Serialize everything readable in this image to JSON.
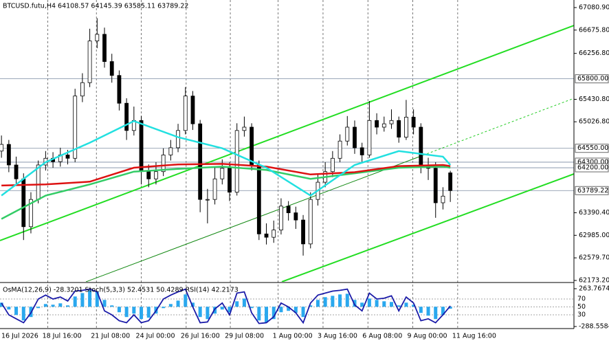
{
  "chart_data": {
    "type": "candlestick",
    "title": "BTCUSD.futu,H4 64108.57 64145.39 63585.11 63789.22",
    "open": [
      64500,
      64620,
      64250,
      64000,
      63140,
      63630,
      64250,
      64370,
      64310,
      64430,
      64370,
      65490,
      65730,
      66480,
      66600,
      66110,
      65860,
      65360,
      64870,
      65050,
      64130,
      64000,
      64130,
      64430,
      64560,
      64870,
      65490,
      64990,
      63630,
      63630,
      64000,
      64190,
      63760,
      64870,
      64930,
      64250,
      63010,
      62950,
      63080,
      63510,
      63390,
      63260,
      62830,
      63630,
      63940,
      64130,
      64370,
      64680,
      64930,
      64560,
      64430,
      65050,
      64930,
      64990,
      65050,
      64750,
      65110,
      64930,
      64250,
      64190,
      63570,
      64108.57
    ],
    "high": [
      64780,
      64700,
      64400,
      64100,
      63760,
      64330,
      64500,
      64480,
      64560,
      64520,
      65620,
      65900,
      66700,
      66890,
      66720,
      66250,
      65950,
      65450,
      65300,
      65130,
      64260,
      64300,
      64550,
      64700,
      64990,
      65650,
      65580,
      65060,
      63820,
      64200,
      64350,
      64300,
      65000,
      65120,
      65000,
      64330,
      63200,
      63250,
      63650,
      63600,
      63500,
      63350,
      63760,
      64080,
      64300,
      64500,
      64800,
      65130,
      65050,
      64650,
      65400,
      65180,
      65120,
      65250,
      65120,
      65420,
      65250,
      65000,
      64380,
      64300,
      63850,
      64145.39
    ],
    "low": [
      64380,
      64120,
      63880,
      62900,
      63020,
      63560,
      64150,
      64200,
      64220,
      64260,
      64300,
      65380,
      65650,
      66350,
      66000,
      65730,
      65230,
      64700,
      64780,
      63900,
      63850,
      63900,
      64050,
      64330,
      64480,
      64800,
      64880,
      63400,
      63200,
      63540,
      63900,
      63600,
      63700,
      64760,
      64150,
      62900,
      62820,
      62850,
      63000,
      63250,
      63100,
      62620,
      62750,
      63520,
      63850,
      64030,
      64300,
      64600,
      64450,
      64300,
      64380,
      64800,
      64850,
      64900,
      64650,
      64700,
      64800,
      64100,
      63980,
      63300,
      63450,
      63585.11
    ],
    "close": [
      64620,
      64250,
      64000,
      63140,
      63630,
      64250,
      64370,
      64310,
      64430,
      64370,
      65490,
      65730,
      66480,
      66600,
      66110,
      65860,
      65360,
      64870,
      65050,
      64130,
      64000,
      64130,
      64430,
      64560,
      64870,
      65490,
      64990,
      63630,
      63630,
      64000,
      64190,
      63760,
      64870,
      64930,
      64250,
      63010,
      62950,
      63080,
      63510,
      63390,
      63260,
      62830,
      63630,
      63940,
      64130,
      64370,
      64680,
      64930,
      64560,
      64430,
      65050,
      64930,
      64990,
      65050,
      64750,
      65110,
      64930,
      64250,
      64190,
      63570,
      63690,
      63789.22
    ],
    "xlim": [
      -0.2,
      77.8
    ],
    "xticks": [
      {
        "value": 0,
        "label": "16 Jul 2026"
      },
      {
        "value": 6.3,
        "label": "18 Jul 16:00"
      },
      {
        "value": 12.9,
        "label": "21 Jul 08:00"
      },
      {
        "value": 19,
        "label": "24 Jul 00:00"
      },
      {
        "value": 25.1,
        "label": "26 Jul 16:00"
      },
      {
        "value": 31.1,
        "label": "29 Jul 08:00"
      },
      {
        "value": 37.6,
        "label": "1 Aug 00:00"
      },
      {
        "value": 43.7,
        "label": "3 Aug 16:00"
      },
      {
        "value": 49.8,
        "label": "6 Aug 08:00"
      },
      {
        "value": 55.9,
        "label": "9 Aug 00:00"
      },
      {
        "value": 62,
        "label": "11 Aug 16:00"
      }
    ],
    "ylim": [
      62173.2,
      67080.9
    ],
    "yticks": [
      {
        "value": 67080.9,
        "label": "67080.90"
      },
      {
        "value": 66675.8,
        "label": "66675.80"
      },
      {
        "value": 66256.8,
        "label": "66256.80"
      },
      {
        "value": 65430.8,
        "label": "65430.80"
      },
      {
        "value": 65026.8,
        "label": "65026.80"
      },
      {
        "value": 63390.4,
        "label": "63390.40"
      },
      {
        "value": 62985,
        "label": "62985.00"
      },
      {
        "value": 62579.7,
        "label": "62579.70"
      },
      {
        "value": 62173.2,
        "label": "62173.20"
      }
    ],
    "levels": [
      {
        "value": 65800,
        "label": "65800.00"
      },
      {
        "value": 64550,
        "label": "64550.00"
      },
      {
        "value": 64300,
        "label": "64300.00"
      },
      {
        "value": 64200,
        "label": "64200.00"
      }
    ],
    "last_price": 63789.22,
    "moving_averages": {
      "x": [
        0,
        6,
        12,
        18,
        24,
        30,
        36,
        42,
        48,
        54,
        60,
        61
      ],
      "lines": [
        {
          "color": "#33cc66",
          "values": [
            63280,
            63700,
            63900,
            64130,
            64180,
            64220,
            64160,
            64000,
            64100,
            64200,
            64220,
            64200
          ]
        },
        {
          "color": "#dd1111",
          "values": [
            63880,
            63900,
            63950,
            64200,
            64260,
            64270,
            64220,
            64080,
            64120,
            64230,
            64250,
            64230
          ]
        },
        {
          "color": "#22e0e0",
          "values": [
            63700,
            64300,
            64650,
            65040,
            64750,
            64550,
            64200,
            63700,
            64250,
            64500,
            64400,
            64250
          ]
        }
      ]
    },
    "indicator": {
      "title": "OsMA(12,26,9) -28.3201  Stoch(5,3,3) 52.4531 50.4289  RSI(14) 42.2173",
      "osma": {
        "color": "#2aa8ee",
        "ylim": [
          -288.5584,
          263.7674
        ],
        "yticks": [
          263.7674,
          -288.5584
        ],
        "values": [
          60,
          -40,
          -120,
          -200,
          -150,
          -20,
          40,
          30,
          50,
          20,
          150,
          200,
          240,
          220,
          100,
          20,
          -80,
          -150,
          -100,
          -180,
          -160,
          -100,
          -20,
          40,
          90,
          180,
          60,
          -150,
          -180,
          -100,
          -40,
          -80,
          80,
          120,
          -20,
          -200,
          -230,
          -180,
          -80,
          -60,
          -90,
          -150,
          20,
          100,
          140,
          160,
          180,
          190,
          100,
          60,
          120,
          100,
          80,
          70,
          20,
          60,
          30,
          -90,
          -130,
          -180,
          -120,
          -28.3201
        ]
      },
      "stoch": {
        "color": "#1a1aa8",
        "ylim": [
          0,
          100
        ],
        "yticks": [
          70,
          50,
          30
        ],
        "values": [
          60,
          30,
          20,
          10,
          35,
          70,
          80,
          70,
          75,
          65,
          90,
          92,
          95,
          88,
          40,
          30,
          15,
          10,
          30,
          10,
          15,
          40,
          70,
          80,
          88,
          95,
          50,
          10,
          12,
          45,
          60,
          30,
          85,
          88,
          35,
          8,
          10,
          25,
          60,
          50,
          35,
          10,
          60,
          80,
          85,
          90,
          92,
          95,
          55,
          40,
          85,
          70,
          72,
          78,
          40,
          75,
          60,
          15,
          20,
          10,
          30,
          52.4531
        ]
      }
    }
  }
}
